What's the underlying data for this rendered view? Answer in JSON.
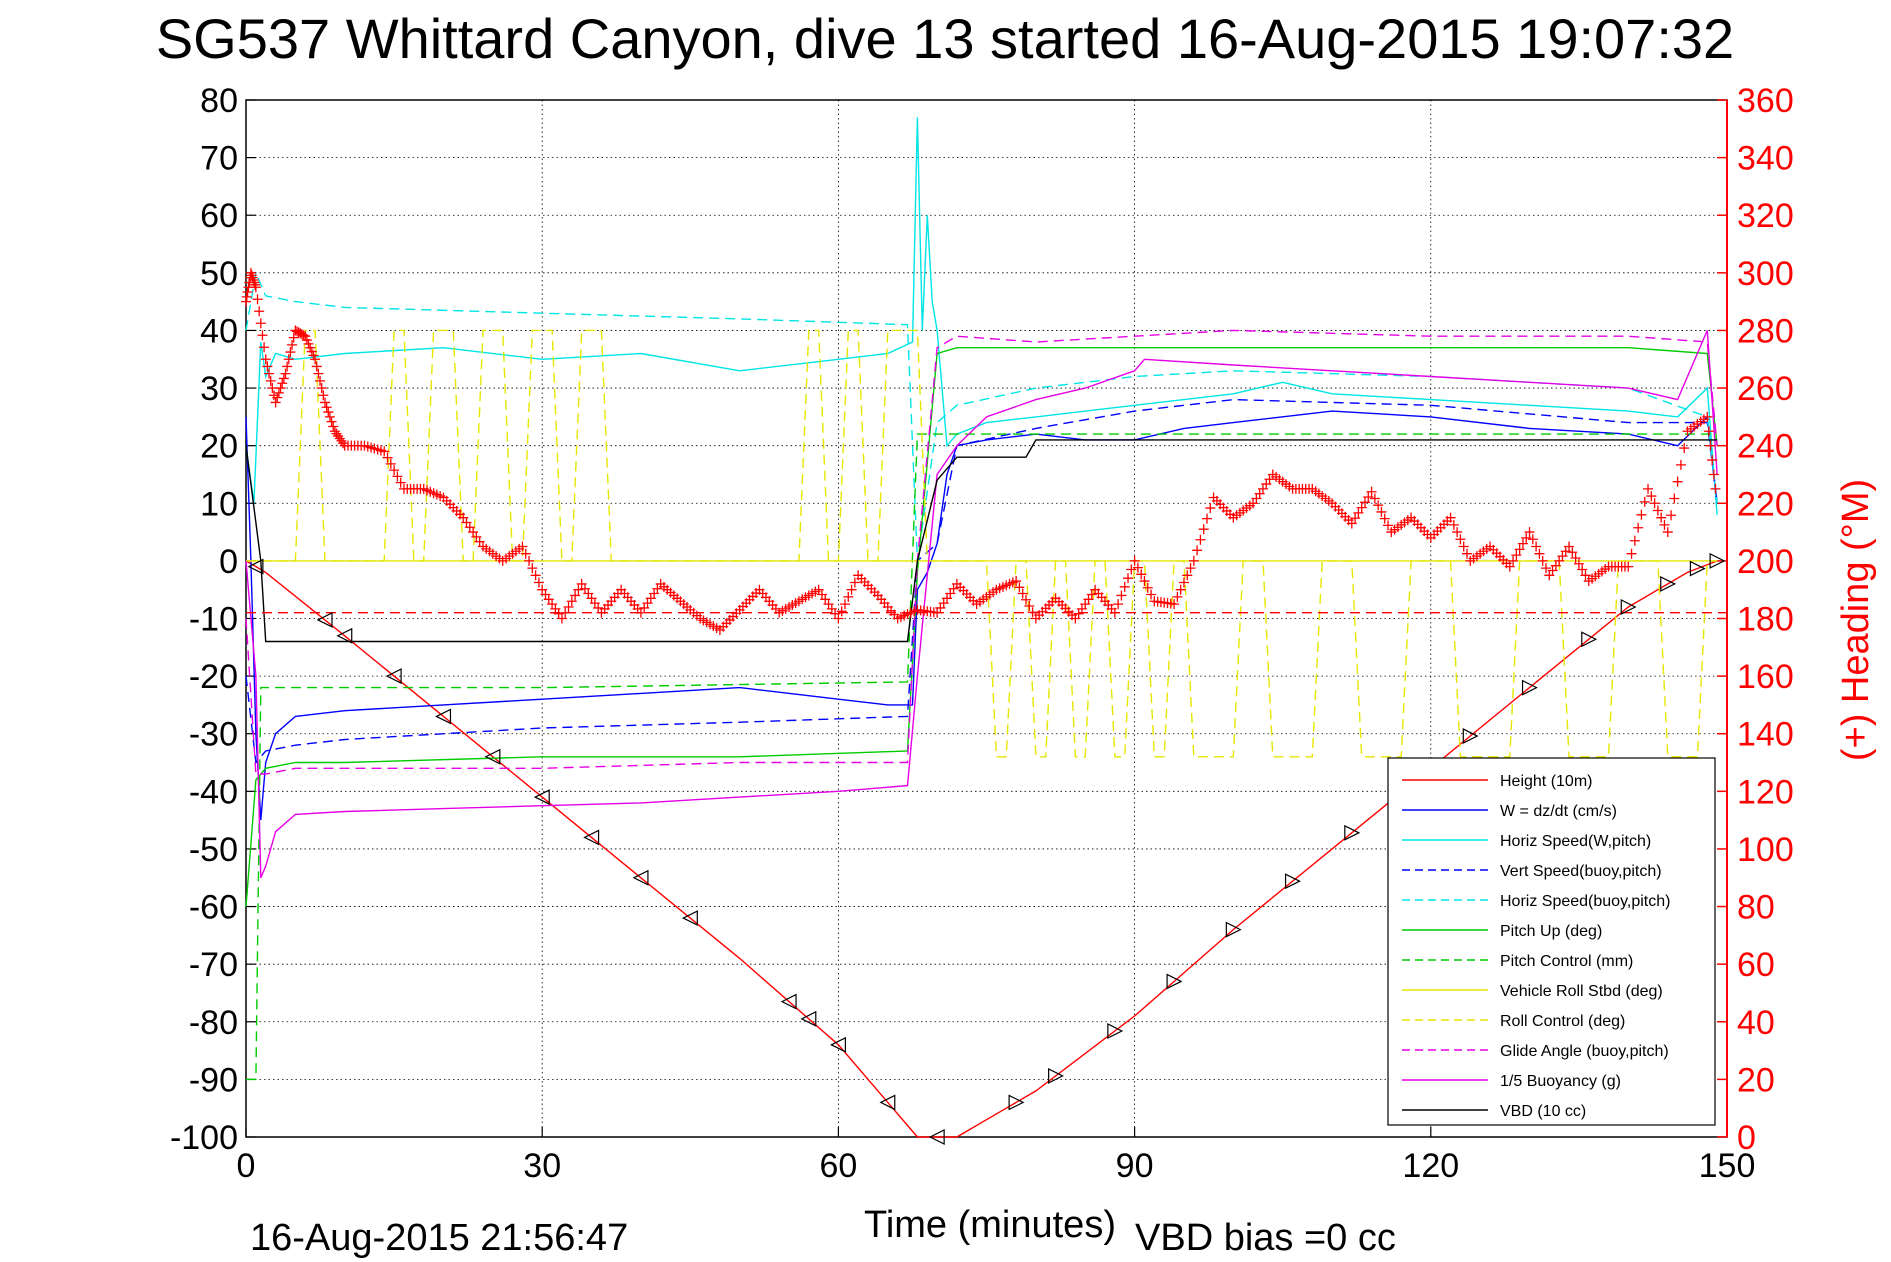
{
  "chart_data": {
    "type": "line",
    "title": "SG537 Whittard Canyon, dive 13 started 16-Aug-2015 19:07:32",
    "xlabel": "Time (minutes)",
    "ylabel_right": "(+) Heading (°M)",
    "footer_left": "16-Aug-2015 21:56:47",
    "footer_right": "VBD bias =0 cc",
    "xlim": [
      0,
      150
    ],
    "ylim_left": [
      -100,
      80
    ],
    "ylim_right": [
      0,
      360
    ],
    "x_ticks": [
      "0",
      "30",
      "60",
      "90",
      "120",
      "150"
    ],
    "y_ticks_left": [
      "80",
      "70",
      "60",
      "50",
      "40",
      "30",
      "20",
      "10",
      "0",
      "-10",
      "-20",
      "-30",
      "-40",
      "-50",
      "-60",
      "-70",
      "-80",
      "-90",
      "-100"
    ],
    "y_ticks_right": [
      "360",
      "340",
      "320",
      "300",
      "280",
      "260",
      "240",
      "220",
      "200",
      "180",
      "160",
      "140",
      "120",
      "100",
      "80",
      "60",
      "40",
      "20",
      "0"
    ],
    "grid": true,
    "legend_position": "bottom-right",
    "series": [
      {
        "name": "Height (10m)",
        "color": "#ff0000",
        "style": "solid",
        "axis": "left",
        "x": [
          0,
          1,
          2,
          10,
          20,
          30,
          40,
          50,
          60,
          65,
          68,
          70,
          72,
          75,
          80,
          90,
          100,
          110,
          120,
          130,
          140,
          146,
          149
        ],
        "y": [
          0,
          -1,
          -2,
          -13,
          -27,
          -41,
          -55,
          -69,
          -84,
          -94,
          -100,
          -100,
          -100,
          -97,
          -92,
          -79,
          -64,
          -50,
          -36,
          -22,
          -8,
          -2,
          0
        ]
      },
      {
        "name": "W = dz/dt (cm/s)",
        "color": "#0000ff",
        "style": "solid",
        "axis": "left",
        "x": [
          0,
          0.5,
          1,
          1.5,
          2,
          3,
          5,
          10,
          20,
          30,
          40,
          50,
          60,
          65,
          67.5,
          68,
          69,
          70,
          71,
          72,
          75,
          80,
          85,
          90,
          95,
          100,
          110,
          120,
          130,
          140,
          145,
          148,
          149
        ],
        "y": [
          25,
          0,
          -30,
          -45,
          -35,
          -30,
          -27,
          -26,
          -25,
          -24,
          -23,
          -22,
          -24,
          -25,
          -25,
          -5,
          -2,
          3,
          15,
          20,
          21,
          22,
          21,
          21,
          23,
          24,
          26,
          25,
          23,
          22,
          20,
          25,
          10
        ]
      },
      {
        "name": "Horiz Speed(W,pitch)",
        "color": "#00e5e5",
        "style": "solid",
        "axis": "left",
        "x": [
          0,
          0.8,
          1.5,
          2,
          3,
          5,
          10,
          20,
          30,
          40,
          50,
          60,
          65,
          67.5,
          68,
          68.5,
          69,
          69.5,
          70,
          71,
          72,
          75,
          80,
          90,
          100,
          105,
          110,
          120,
          130,
          140,
          145,
          148,
          149
        ],
        "y": [
          20,
          10,
          38,
          32,
          36,
          35,
          36,
          37,
          35,
          36,
          33,
          35,
          36,
          38,
          77,
          40,
          60,
          45,
          40,
          20,
          22,
          24,
          25,
          27,
          29,
          31,
          29,
          28,
          27,
          26,
          25,
          30,
          8
        ]
      },
      {
        "name": "Vert Speed(buoy,pitch)",
        "color": "#0000ff",
        "style": "dashed",
        "axis": "left",
        "x": [
          0,
          1,
          2,
          5,
          10,
          30,
          50,
          67,
          68,
          70,
          72,
          80,
          90,
          100,
          120,
          140,
          148,
          149
        ],
        "y": [
          -20,
          -35,
          -33,
          -32,
          -31,
          -29,
          -28,
          -27,
          0,
          3,
          20,
          23,
          26,
          28,
          27,
          24,
          24,
          10
        ]
      },
      {
        "name": "Horiz Speed(buoy,pitch)",
        "color": "#00e5e5",
        "style": "dashed",
        "axis": "left",
        "x": [
          0,
          1,
          2,
          5,
          10,
          30,
          50,
          67,
          68,
          70,
          72,
          80,
          90,
          100,
          120,
          140,
          148,
          149
        ],
        "y": [
          40,
          50,
          46,
          45,
          44,
          43,
          42,
          41,
          0,
          24,
          27,
          30,
          32,
          33,
          32,
          30,
          25,
          10
        ]
      },
      {
        "name": "Pitch Up (deg)",
        "color": "#00cc00",
        "style": "solid",
        "axis": "left",
        "x": [
          0,
          1,
          2,
          5,
          10,
          30,
          50,
          67,
          68,
          70,
          72,
          80,
          90,
          100,
          120,
          140,
          148,
          149
        ],
        "y": [
          -60,
          -38,
          -36,
          -35,
          -35,
          -34,
          -34,
          -33,
          -2,
          36,
          37,
          37,
          37,
          37,
          37,
          37,
          36,
          20
        ]
      },
      {
        "name": "Pitch Control (mm)",
        "color": "#00cc00",
        "style": "dashed",
        "axis": "left",
        "x": [
          0,
          1,
          1.5,
          2,
          30,
          67,
          68,
          70,
          149
        ],
        "y": [
          -90,
          -90,
          -22,
          -22,
          -22,
          -21,
          22,
          22,
          22
        ]
      },
      {
        "name": "Vehicle Roll Stbd (deg)",
        "color": "#e6e600",
        "style": "solid",
        "axis": "left",
        "x": [
          0,
          67,
          68,
          149
        ],
        "y": [
          0,
          0,
          0,
          0
        ]
      },
      {
        "name": "Roll Control (deg)",
        "color": "#e6e600",
        "style": "dashed",
        "axis": "left",
        "x": [
          0,
          5,
          6,
          7,
          8,
          9,
          14,
          15,
          16,
          17,
          18,
          19,
          21,
          22,
          23,
          24,
          26,
          27,
          28,
          29,
          31,
          32,
          33,
          34,
          36,
          37,
          56,
          57,
          58,
          59,
          60,
          61,
          62,
          63,
          64,
          65,
          68,
          69,
          75,
          76,
          77,
          78,
          79,
          80,
          81,
          82,
          83,
          84,
          85,
          86,
          87,
          88,
          89,
          90,
          91,
          92,
          93,
          94,
          95,
          96,
          100,
          101,
          103,
          104,
          108,
          109,
          112,
          113,
          117,
          118,
          122,
          123,
          128,
          129,
          133,
          134,
          138,
          139,
          143,
          144,
          147,
          148,
          149
        ],
        "y": [
          0,
          0,
          40,
          40,
          0,
          0,
          0,
          40,
          40,
          0,
          0,
          40,
          40,
          0,
          0,
          40,
          40,
          0,
          0,
          40,
          40,
          0,
          0,
          40,
          40,
          0,
          0,
          40,
          40,
          0,
          0,
          40,
          40,
          0,
          0,
          40,
          40,
          0,
          0,
          -34,
          -34,
          0,
          0,
          -34,
          -34,
          0,
          0,
          -34,
          -34,
          0,
          0,
          -34,
          -34,
          0,
          0,
          -34,
          -34,
          0,
          0,
          -34,
          -34,
          0,
          0,
          -34,
          -34,
          0,
          0,
          -34,
          -34,
          0,
          0,
          -34,
          -34,
          0,
          0,
          -34,
          -34,
          0,
          0,
          -34,
          -34,
          0,
          0
        ]
      },
      {
        "name": "Glide Angle (buoy,pitch)",
        "color": "#e600e6",
        "style": "dashed",
        "axis": "left",
        "x": [
          0,
          1,
          2,
          5,
          10,
          30,
          50,
          67,
          68,
          70,
          72,
          80,
          90,
          100,
          120,
          140,
          148,
          149
        ],
        "y": [
          -10,
          -37,
          -37,
          -36,
          -36,
          -36,
          -35,
          -35,
          0,
          37,
          39,
          38,
          39,
          40,
          39,
          39,
          38,
          20
        ]
      },
      {
        "name": "1/5 Buoyancy (g)",
        "color": "#e600e6",
        "style": "solid",
        "axis": "left",
        "x": [
          0,
          1,
          1.5,
          2,
          3,
          5,
          10,
          20,
          30,
          40,
          50,
          60,
          67,
          68,
          70,
          72,
          75,
          80,
          85,
          90,
          91,
          100,
          110,
          120,
          130,
          140,
          145,
          148,
          149
        ],
        "y": [
          0,
          -20,
          -55,
          -53,
          -47,
          -44,
          -43.5,
          -43,
          -42.5,
          -42,
          -41,
          -40,
          -39,
          -20,
          15,
          20,
          25,
          28,
          30,
          33,
          35,
          34,
          33,
          32,
          31,
          30,
          28,
          40,
          15
        ]
      },
      {
        "name": "VBD (10 cc)",
        "color": "#000000",
        "style": "solid",
        "axis": "left",
        "x": [
          0,
          1.5,
          2,
          67,
          68,
          70,
          72,
          76,
          79,
          80,
          90,
          149
        ],
        "y": [
          20,
          0,
          -14,
          -14,
          0,
          14,
          18,
          18,
          18,
          21,
          21,
          21
        ]
      },
      {
        "name": "",
        "color": "#ff0000",
        "style": "dashed",
        "axis": "left",
        "x": [
          0,
          150
        ],
        "y": [
          -9,
          -9
        ]
      },
      {
        "name": "",
        "color": "#ff0000",
        "style": "plus",
        "axis": "right",
        "x": [
          0,
          0.5,
          1,
          2,
          3,
          4,
          5,
          6,
          7,
          8,
          9,
          10,
          12,
          14,
          16,
          18,
          20,
          22,
          24,
          26,
          28,
          30,
          32,
          34,
          36,
          38,
          40,
          42,
          44,
          46,
          48,
          50,
          52,
          54,
          56,
          58,
          60,
          62,
          64,
          66,
          68,
          70,
          72,
          74,
          76,
          78,
          80,
          82,
          84,
          86,
          88,
          90,
          92,
          94,
          96,
          98,
          100,
          102,
          104,
          106,
          108,
          110,
          112,
          114,
          116,
          118,
          120,
          122,
          124,
          126,
          128,
          130,
          132,
          134,
          136,
          138,
          140,
          142,
          144,
          146,
          148,
          149
        ],
        "y": [
          290,
          300,
          295,
          270,
          255,
          265,
          280,
          278,
          270,
          255,
          245,
          240,
          240,
          238,
          225,
          225,
          222,
          215,
          205,
          200,
          205,
          190,
          180,
          192,
          182,
          190,
          182,
          192,
          186,
          180,
          176,
          183,
          190,
          182,
          186,
          190,
          180,
          195,
          188,
          180,
          183,
          182,
          192,
          185,
          190,
          193,
          180,
          187,
          180,
          190,
          182,
          200,
          186,
          185,
          200,
          222,
          215,
          220,
          230,
          225,
          225,
          220,
          213,
          224,
          210,
          215,
          208,
          215,
          200,
          205,
          198,
          210,
          195,
          205,
          193,
          198,
          198,
          225,
          210,
          245,
          250,
          220
        ]
      }
    ],
    "legend_entries": [
      "Height (10m)",
      "W = dz/dt (cm/s)",
      "Horiz Speed(W,pitch)",
      "Vert Speed(buoy,pitch)",
      "Horiz Speed(buoy,pitch)",
      "Pitch Up (deg)",
      "Pitch Control (mm)",
      "Vehicle Roll Stbd (deg)",
      "Roll Control (deg)",
      "Glide Angle (buoy,pitch)",
      "1/5 Buoyancy (g)",
      "VBD (10 cc)"
    ],
    "markers": {
      "color": "#000000",
      "down_x": [
        1,
        8,
        10,
        15,
        20,
        25,
        30,
        35,
        40,
        45,
        55,
        57,
        60,
        65,
        70
      ],
      "up_x": [
        78,
        82,
        88,
        94,
        100,
        106,
        112,
        118,
        124,
        130,
        136,
        140,
        144,
        147,
        149
      ]
    }
  }
}
